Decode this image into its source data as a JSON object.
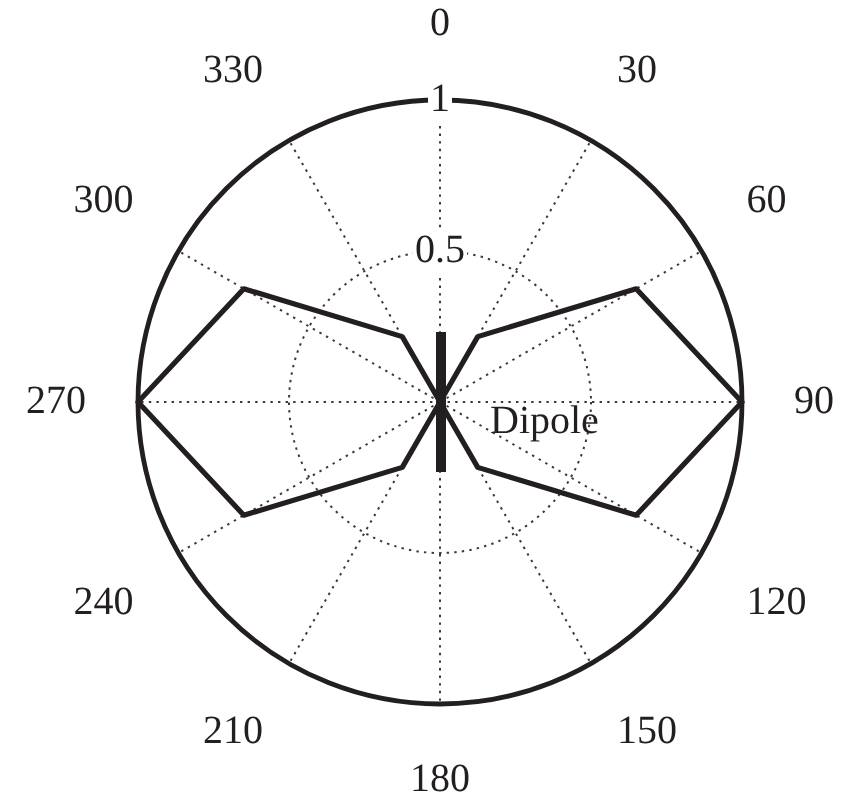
{
  "chart_data": {
    "type": "radar",
    "categories": [
      "0",
      "30",
      "60",
      "90",
      "120",
      "150",
      "180",
      "210",
      "240",
      "270",
      "300",
      "330"
    ],
    "series": [
      {
        "color": "#231f20",
        "values": [
          0,
          0.25,
          0.75,
          1,
          0.75,
          0.25,
          0,
          0.25,
          0.75,
          1,
          0.75,
          0.25
        ]
      }
    ],
    "ylim": [
      0,
      1
    ],
    "yticks": [
      0.5,
      1
    ],
    "grid": true,
    "annotations": [
      "Dipole"
    ]
  }
}
